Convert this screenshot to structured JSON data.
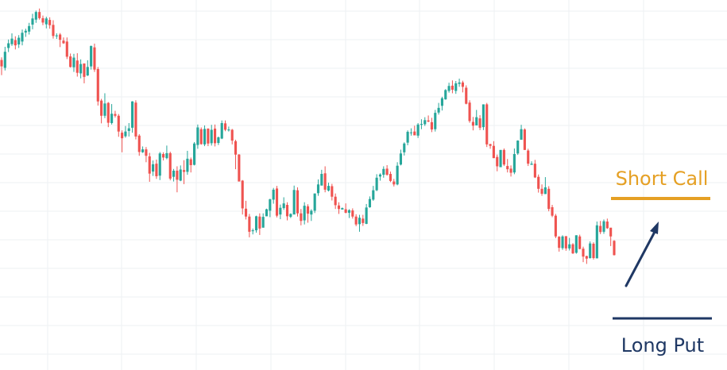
{
  "chart_data": {
    "type": "candlestick",
    "title": "",
    "xlabel": "",
    "ylabel": "",
    "grid": true,
    "y_range": [
      0,
      100
    ],
    "colors": {
      "up": "#26a69a",
      "down": "#ef5350",
      "grid": "#eef0f3"
    },
    "annotations": {
      "short_call": {
        "label": "Short Call",
        "color": "#e5a024"
      },
      "long_put": {
        "label": "Long Put",
        "color": "#1f3864"
      },
      "arrow": {
        "color": "#1f3864",
        "direction": "up-right"
      }
    },
    "candles": [
      [
        82.2,
        80.0,
        83.1,
        77.0
      ],
      [
        79.5,
        85.0,
        86.7,
        78.6
      ],
      [
        86.3,
        87.9,
        89.2,
        84.9
      ],
      [
        87.6,
        89.5,
        91.3,
        87.0
      ],
      [
        89.0,
        87.2,
        90.3,
        85.8
      ],
      [
        87.5,
        89.8,
        90.7,
        86.3
      ],
      [
        88.5,
        91.5,
        92.6,
        87.2
      ],
      [
        91.6,
        92.2,
        92.9,
        90.1
      ],
      [
        91.9,
        93.8,
        94.9,
        90.9
      ],
      [
        94.3,
        96.4,
        98.0,
        92.7
      ],
      [
        96.0,
        98.6,
        99.1,
        94.9
      ],
      [
        98.6,
        96.5,
        99.8,
        96.0
      ],
      [
        96.5,
        95.0,
        97.4,
        94.1
      ],
      [
        94.4,
        96.4,
        97.0,
        93.0
      ],
      [
        95.9,
        94.1,
        96.8,
        92.9
      ],
      [
        94.2,
        90.4,
        95.8,
        89.5
      ],
      [
        90.3,
        90.6,
        91.3,
        89.4
      ],
      [
        90.9,
        89.1,
        91.4,
        86.6
      ],
      [
        88.8,
        87.9,
        89.9,
        87.7
      ],
      [
        88.5,
        83.3,
        89.9,
        82.5
      ],
      [
        83.4,
        79.8,
        84.4,
        79.6
      ],
      [
        79.7,
        83.0,
        84.3,
        78.1
      ],
      [
        82.0,
        77.8,
        84.5,
        76.5
      ],
      [
        77.6,
        80.8,
        82.4,
        75.9
      ],
      [
        81.0,
        76.4,
        81.0,
        74.2
      ],
      [
        76.9,
        79.8,
        82.1,
        76.7
      ],
      [
        80.0,
        87.0,
        87.1,
        78.9
      ],
      [
        86.5,
        78.9,
        87.8,
        78.1
      ],
      [
        79.1,
        68.0,
        79.8,
        66.6
      ],
      [
        68.3,
        63.1,
        68.9,
        60.5
      ],
      [
        63.1,
        67.3,
        70.8,
        62.3
      ],
      [
        67.5,
        60.7,
        67.8,
        59.2
      ],
      [
        60.6,
        63.8,
        67.1,
        60.1
      ],
      [
        63.7,
        63.1,
        64.8,
        62.5
      ],
      [
        63.1,
        57.7,
        63.7,
        55.9
      ],
      [
        57.3,
        55.4,
        58.1,
        50.6
      ],
      [
        56.1,
        57.7,
        59.6,
        55.6
      ],
      [
        57.9,
        58.8,
        60.6,
        56.0
      ],
      [
        59.0,
        68.0,
        68.1,
        57.3
      ],
      [
        67.6,
        56.0,
        68.4,
        55.0
      ],
      [
        56.3,
        50.7,
        56.8,
        49.4
      ],
      [
        50.6,
        51.6,
        52.6,
        50.4
      ],
      [
        51.6,
        49.4,
        52.4,
        47.2
      ],
      [
        49.2,
        43.3,
        50.4,
        40.5
      ],
      [
        44.0,
        46.5,
        47.8,
        42.5
      ],
      [
        46.7,
        42.4,
        48.1,
        41.5
      ],
      [
        42.6,
        50.2,
        50.7,
        41.1
      ],
      [
        50.0,
        48.8,
        50.6,
        47.8
      ],
      [
        48.6,
        50.3,
        52.9,
        48.2
      ],
      [
        50.3,
        41.6,
        50.8,
        41.0
      ],
      [
        42.2,
        44.3,
        44.9,
        40.6
      ],
      [
        44.3,
        41.2,
        45.8,
        36.9
      ],
      [
        40.9,
        44.7,
        46.1,
        40.7
      ],
      [
        44.5,
        43.9,
        47.9,
        39.7
      ],
      [
        43.9,
        48.4,
        51.1,
        42.9
      ],
      [
        48.2,
        46.2,
        48.8,
        43.7
      ],
      [
        46.3,
        53.6,
        54.1,
        46.1
      ],
      [
        53.1,
        59.1,
        60.1,
        51.8
      ],
      [
        58.5,
        53.4,
        59.1,
        53.2
      ],
      [
        53.3,
        58.6,
        59.8,
        52.7
      ],
      [
        58.7,
        53.6,
        58.8,
        52.7
      ],
      [
        53.7,
        58.3,
        60.0,
        52.9
      ],
      [
        58.7,
        53.7,
        60.1,
        52.6
      ],
      [
        53.8,
        55.7,
        56.0,
        53.1
      ],
      [
        55.3,
        60.6,
        61.5,
        55.1
      ],
      [
        60.5,
        58.3,
        61.5,
        57.8
      ],
      [
        58.1,
        58.4,
        59.4,
        57.7
      ],
      [
        58.3,
        54.6,
        58.6,
        53.3
      ],
      [
        54.4,
        49.8,
        54.9,
        44.8
      ],
      [
        49.8,
        40.6,
        50.0,
        40.6
      ],
      [
        40.9,
        31.4,
        41.1,
        29.3
      ],
      [
        31.3,
        28.6,
        34.0,
        27.6
      ],
      [
        28.6,
        23.4,
        29.5,
        21.5
      ],
      [
        23.6,
        23.9,
        24.5,
        22.5
      ],
      [
        23.9,
        28.7,
        28.9,
        23.1
      ],
      [
        28.6,
        24.5,
        29.7,
        22.3
      ],
      [
        24.8,
        28.5,
        29.7,
        24.8
      ],
      [
        28.7,
        31.1,
        31.3,
        28.7
      ],
      [
        30.6,
        34.5,
        34.7,
        28.4
      ],
      [
        34.4,
        37.8,
        38.4,
        33.0
      ],
      [
        38.2,
        28.9,
        39.1,
        28.3
      ],
      [
        29.3,
        31.6,
        32.7,
        27.7
      ],
      [
        31.5,
        33.1,
        35.2,
        30.9
      ],
      [
        32.6,
        28.7,
        33.5,
        27.3
      ],
      [
        28.5,
        29.5,
        29.7,
        28.1
      ],
      [
        29.3,
        37.7,
        39.2,
        29.4
      ],
      [
        37.6,
        29.7,
        38.6,
        28.6
      ],
      [
        29.7,
        27.1,
        31.2,
        25.6
      ],
      [
        27.3,
        32.3,
        33.5,
        25.9
      ],
      [
        32.1,
        29.6,
        32.8,
        26.5
      ],
      [
        29.3,
        30.6,
        31.1,
        27.1
      ],
      [
        30.6,
        36.5,
        36.5,
        29.8
      ],
      [
        36.6,
        39.6,
        41.3,
        35.7
      ],
      [
        39.2,
        43.2,
        44.6,
        39.5
      ],
      [
        43.4,
        37.8,
        45.8,
        36.9
      ],
      [
        37.5,
        39.1,
        40.2,
        37.2
      ],
      [
        39.0,
        35.4,
        39.8,
        34.1
      ],
      [
        35.4,
        32.5,
        36.5,
        31.2
      ],
      [
        32.4,
        31.2,
        33.5,
        29.5
      ],
      [
        31.0,
        31.5,
        31.7,
        31.2
      ],
      [
        31.1,
        29.9,
        33.1,
        29.7
      ],
      [
        29.9,
        30.8,
        31.1,
        28.1
      ],
      [
        30.7,
        28.6,
        31.4,
        27.9
      ],
      [
        28.6,
        25.9,
        29.4,
        25.3
      ],
      [
        26.0,
        28.2,
        29.2,
        23.4
      ],
      [
        27.9,
        26.4,
        29.2,
        25.4
      ],
      [
        26.1,
        31.7,
        32.9,
        26.0
      ],
      [
        31.8,
        34.6,
        35.5,
        31.6
      ],
      [
        34.4,
        37.6,
        39.1,
        34.0
      ],
      [
        37.6,
        41.9,
        43.1,
        37.3
      ],
      [
        42.3,
        43.0,
        43.4,
        40.9
      ],
      [
        42.9,
        44.9,
        45.8,
        41.9
      ],
      [
        45.0,
        42.9,
        46.2,
        42.6
      ],
      [
        43.2,
        40.8,
        44.0,
        40.4
      ],
      [
        40.6,
        39.6,
        41.5,
        38.9
      ],
      [
        39.6,
        46.0,
        47.2,
        39.3
      ],
      [
        46.4,
        50.2,
        51.5,
        46.1
      ],
      [
        50.6,
        53.6,
        54.0,
        49.5
      ],
      [
        53.9,
        57.6,
        58.1,
        53.0
      ],
      [
        57.4,
        57.4,
        58.8,
        56.3
      ],
      [
        57.7,
        56.4,
        59.7,
        56.4
      ],
      [
        56.3,
        60.1,
        60.6,
        55.5
      ],
      [
        60.0,
        60.3,
        61.9,
        58.5
      ],
      [
        60.2,
        61.6,
        62.6,
        59.6
      ],
      [
        61.5,
        61.1,
        63.2,
        60.9
      ],
      [
        60.9,
        58.4,
        62.4,
        57.5
      ],
      [
        58.5,
        64.1,
        65.1,
        57.7
      ],
      [
        64.2,
        65.8,
        67.5,
        63.5
      ],
      [
        66.5,
        69.1,
        69.6,
        64.9
      ],
      [
        68.7,
        71.9,
        72.2,
        68.6
      ],
      [
        71.6,
        73.3,
        74.4,
        71.0
      ],
      [
        73.4,
        72.0,
        75.2,
        70.8
      ],
      [
        71.6,
        74.2,
        75.0,
        70.6
      ],
      [
        74.0,
        74.5,
        75.8,
        73.0
      ],
      [
        74.5,
        73.0,
        75.1,
        71.1
      ],
      [
        72.7,
        67.2,
        73.5,
        67.0
      ],
      [
        67.6,
        61.3,
        68.4,
        60.7
      ],
      [
        61.0,
        59.7,
        62.7,
        58.1
      ],
      [
        59.8,
        62.6,
        65.1,
        60.0
      ],
      [
        62.2,
        59.0,
        63.3,
        58.2
      ],
      [
        59.2,
        67.0,
        67.0,
        58.2
      ],
      [
        67.0,
        53.3,
        67.5,
        52.4
      ],
      [
        53.4,
        52.8,
        53.5,
        51.8
      ],
      [
        52.8,
        48.6,
        54.4,
        48.6
      ],
      [
        49.0,
        45.8,
        49.8,
        44.1
      ],
      [
        45.5,
        51.4,
        51.4,
        45.6
      ],
      [
        51.4,
        46.4,
        51.9,
        45.9
      ],
      [
        45.9,
        44.8,
        48.3,
        43.7
      ],
      [
        45.0,
        43.6,
        46.1,
        42.3
      ],
      [
        43.7,
        50.0,
        51.9,
        43.1
      ],
      [
        50.2,
        54.6,
        54.7,
        49.7
      ],
      [
        54.9,
        58.5,
        60.0,
        55.4
      ],
      [
        58.4,
        51.4,
        58.8,
        51.4
      ],
      [
        51.2,
        46.7,
        51.8,
        45.9
      ],
      [
        46.3,
        46.7,
        47.5,
        46.4
      ],
      [
        46.7,
        42.0,
        48.0,
        41.8
      ],
      [
        42.2,
        38.1,
        43.0,
        36.8
      ],
      [
        38.1,
        36.4,
        39.6,
        35.7
      ],
      [
        36.3,
        38.6,
        42.1,
        36.9
      ],
      [
        38.1,
        31.2,
        39.0,
        30.4
      ],
      [
        31.8,
        28.9,
        32.6,
        28.4
      ],
      [
        28.9,
        21.8,
        29.5,
        21.2
      ],
      [
        21.7,
        17.9,
        21.9,
        16.6
      ],
      [
        17.8,
        21.8,
        22.2,
        17.2
      ],
      [
        21.9,
        17.7,
        21.9,
        16.9
      ],
      [
        17.7,
        19.1,
        21.3,
        17.0
      ],
      [
        19.1,
        16.0,
        19.5,
        15.8
      ],
      [
        16.2,
        22.2,
        22.2,
        15.9
      ],
      [
        21.8,
        17.5,
        22.4,
        17.4
      ],
      [
        17.6,
        14.9,
        18.3,
        13.0
      ],
      [
        15.1,
        14.2,
        15.2,
        12.4
      ],
      [
        14.4,
        19.4,
        20.1,
        14.2
      ],
      [
        19.3,
        14.4,
        19.8,
        13.9
      ],
      [
        14.3,
        25.6,
        26.9,
        14.3
      ],
      [
        25.4,
        23.3,
        27.1,
        22.6
      ],
      [
        23.4,
        27.0,
        27.6,
        22.7
      ],
      [
        26.9,
        24.6,
        27.9,
        24.4
      ],
      [
        24.8,
        21.8,
        24.7,
        18.5
      ],
      [
        20.3,
        15.4,
        20.5,
        15.3
      ]
    ]
  }
}
